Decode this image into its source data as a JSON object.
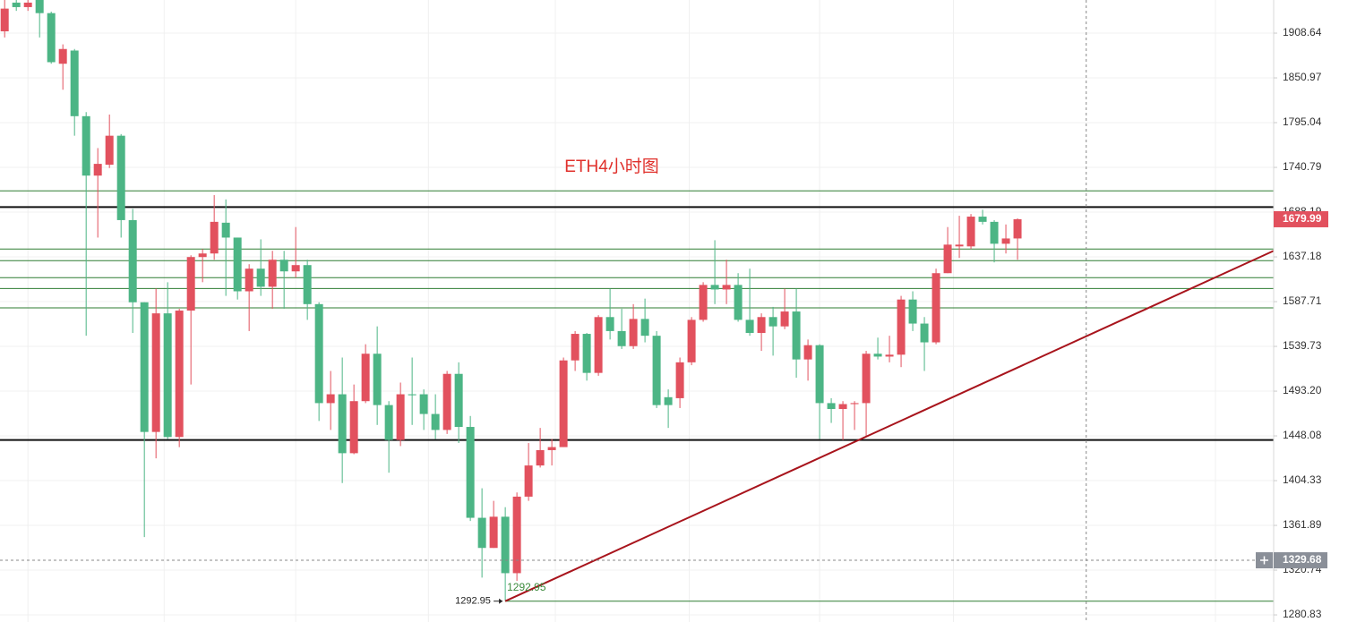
{
  "chart_data": {
    "type": "candlestick",
    "title": "ETH4小时图",
    "title_color": "#e0302b",
    "log_scale": true,
    "grid": true,
    "ylim": [
      1274.6,
      1952.5
    ],
    "yticks": [
      1908.64,
      1850.97,
      1795.04,
      1740.79,
      1688.19,
      1637.18,
      1587.71,
      1539.73,
      {
        "value": 1493.2,
        "label": "1493.20"
      },
      1448.08,
      1404.33,
      1361.89,
      1320.74,
      1280.83
    ],
    "xlim": [
      -0.4,
      109
    ],
    "xticks": [
      2,
      13.7,
      25,
      36.4,
      47.3,
      58.8,
      70,
      81.5,
      104
    ],
    "up_color": "#e2515e",
    "down_color": "#4cb585",
    "open": [
      1911,
      1949,
      1943,
      1953,
      1935,
      1869,
      1886,
      1803,
      1731,
      1744,
      1779,
      1679,
      1587,
      1452,
      1575,
      1447,
      1578,
      1637,
      1641,
      1676,
      1659,
      1599,
      1624,
      1604,
      1634,
      1621,
      1628,
      1585,
      1481,
      1490,
      1431,
      1483,
      1532,
      1479,
      1444,
      1490,
      1490,
      1470,
      1454,
      1511,
      1457,
      1369,
      1341,
      1370,
      1318,
      1389,
      1419,
      1434,
      1437,
      1525,
      1553,
      1512,
      1571,
      1556,
      1540,
      1569,
      1551,
      1487,
      1486,
      1523,
      1568,
      1606,
      1601,
      1606,
      1568,
      1554,
      1571,
      1561,
      1577,
      1526,
      1541,
      1481,
      1475,
      1480,
      1481,
      1532,
      1529,
      1531,
      1590,
      1564,
      1544,
      1619,
      1649,
      1649,
      1683,
      1677,
      1652,
      1658
    ],
    "high": [
      1953,
      1953,
      1953,
      1953,
      1937,
      1894,
      1888,
      1808,
      1764,
      1805,
      1781,
      1692,
      1587,
      1602,
      1609,
      1580,
      1639,
      1646,
      1708,
      1703,
      1659,
      1629,
      1657,
      1644,
      1644,
      1671,
      1634,
      1587,
      1514,
      1528,
      1500,
      1542,
      1561,
      1483,
      1502,
      1528,
      1495,
      1490,
      1514,
      1523,
      1468,
      1397,
      1385,
      1379,
      1393,
      1441,
      1456,
      1445,
      1528,
      1556,
      1554,
      1573,
      1602,
      1580,
      1585,
      1591,
      1556,
      1495,
      1528,
      1571,
      1609,
      1656,
      1634,
      1619,
      1624,
      1575,
      1582,
      1602,
      1602,
      1547,
      1542,
      1486,
      1483,
      1483,
      1535,
      1549,
      1551,
      1594,
      1599,
      1571,
      1624,
      1671,
      1684,
      1686,
      1691,
      1679,
      1674,
      1681
    ],
    "low": [
      1903,
      1938,
      1938,
      1903,
      1869,
      1836,
      1779,
      1551,
      1659,
      1740,
      1659,
      1554,
      1351,
      1426,
      1445,
      1437,
      1500,
      1609,
      1634,
      1594,
      1590,
      1556,
      1594,
      1580,
      1580,
      1614,
      1568,
      1463,
      1454,
      1402,
      1430,
      1481,
      1459,
      1412,
      1438,
      1459,
      1454,
      1445,
      1450,
      1441,
      1366,
      1314,
      1341,
      1292.95,
      1311,
      1385,
      1417,
      1419,
      1437,
      1514,
      1504,
      1509,
      1547,
      1537,
      1537,
      1544,
      1476,
      1456,
      1476,
      1520,
      1566,
      1585,
      1585,
      1566,
      1551,
      1535,
      1530,
      1558,
      1507,
      1504,
      1445,
      1461,
      1444,
      1454,
      1447,
      1526,
      1523,
      1518,
      1556,
      1514,
      1542,
      1619,
      1636,
      1646,
      1674,
      1631,
      1641,
      1634
    ],
    "close": [
      1941,
      1943,
      1949,
      1935,
      1871,
      1888,
      1803,
      1731,
      1745,
      1779,
      1679,
      1587,
      1452,
      1575,
      1447,
      1578,
      1637,
      1641,
      1677,
      1659,
      1599,
      1624,
      1604,
      1634,
      1621,
      1628,
      1585,
      1481,
      1490,
      1431,
      1483,
      1532,
      1479,
      1444,
      1490,
      1489,
      1470,
      1454,
      1511,
      1457,
      1369,
      1341,
      1370,
      1318,
      1389,
      1419,
      1434,
      1437,
      1525,
      1553,
      1512,
      1571,
      1556,
      1540,
      1569,
      1551,
      1479,
      1479,
      1523,
      1568,
      1606,
      1601,
      1606,
      1568,
      1554,
      1571,
      1561,
      1577,
      1526,
      1541,
      1481,
      1475,
      1480,
      1481,
      1532,
      1529,
      1531,
      1590,
      1564,
      1544,
      1619,
      1651,
      1651,
      1683,
      1677,
      1652,
      1658,
      1679.99
    ],
    "levels": [
      {
        "price": 1713,
        "color": "#2e7d32"
      },
      {
        "price": 1694,
        "color": "#111111"
      },
      {
        "price": 1646,
        "color": "#2e7d32"
      },
      {
        "price": 1633,
        "color": "#2e7d32"
      },
      {
        "price": 1614,
        "color": "#2e7d32"
      },
      {
        "price": 1602,
        "color": "#2e7d32"
      },
      {
        "price": 1581,
        "color": "#2e7d32"
      },
      {
        "price": 1444,
        "color": "#111111"
      },
      {
        "price": 1292.95,
        "color": "#2e7d32",
        "from": 43
      }
    ],
    "trendline": {
      "color": "#a8141c",
      "start": {
        "x": 43,
        "y": 1292.95
      },
      "end": {
        "x": 109,
        "y": 1644
      }
    },
    "low_marker": {
      "index": 43,
      "value": 1292.95,
      "label": "1292.95",
      "color": "#3d8b3d"
    },
    "current_price": {
      "value": 1679.99,
      "color": "#e2515e"
    },
    "crosshair": {
      "price": 1329.68,
      "x": 92.9,
      "color": "#888888"
    }
  }
}
